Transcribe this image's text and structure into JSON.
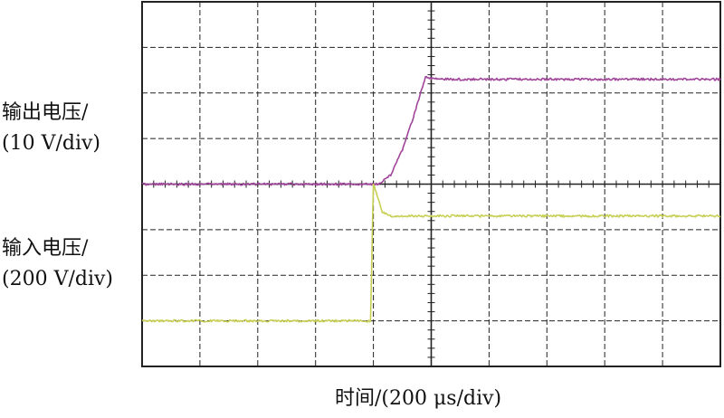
{
  "labels": {
    "y_output_line1": "输出电压/",
    "y_output_line2": "(10 V/div)",
    "y_input_line1": "输入电压/",
    "y_input_line2": "(200 V/div)",
    "x_label": "时间/(200 μs/div)"
  },
  "colors": {
    "output": "#a0469a",
    "input": "#c8cf55",
    "grid": "#222222"
  },
  "chart_data": {
    "type": "line",
    "grid": true,
    "x_divisions": 10,
    "y_divisions": 8,
    "x_units": "div (200 μs/div)",
    "x_range": [
      0,
      10
    ],
    "series": [
      {
        "key": "output",
        "y_units": "div (10 V/div)",
        "points": [
          [
            0,
            0
          ],
          [
            4.1,
            0
          ],
          [
            4.3,
            0.2
          ],
          [
            4.5,
            0.75
          ],
          [
            4.7,
            1.5
          ],
          [
            4.9,
            2.35
          ],
          [
            5.0,
            2.32
          ],
          [
            5.3,
            2.3
          ],
          [
            10,
            2.3
          ]
        ]
      },
      {
        "key": "input",
        "y_units": "div (200 V/div)",
        "points": [
          [
            0,
            -3.0
          ],
          [
            3.95,
            -3.0
          ],
          [
            4.0,
            0.0
          ],
          [
            4.15,
            -0.6
          ],
          [
            4.3,
            -0.7
          ],
          [
            10,
            -0.7
          ]
        ]
      }
    ]
  }
}
